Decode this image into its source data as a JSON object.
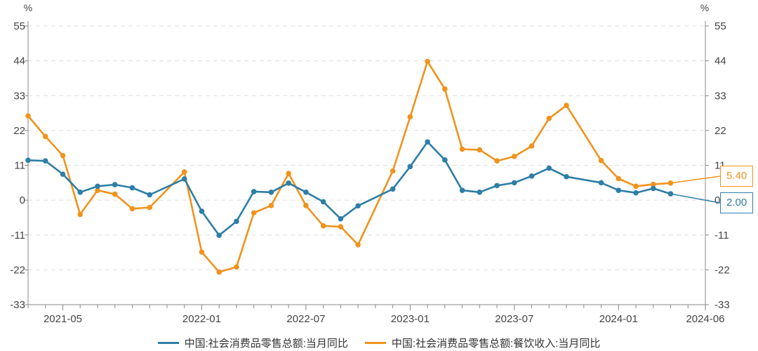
{
  "chart_data": {
    "type": "line",
    "left_axis_unit": "%",
    "right_axis_unit": "%",
    "y_ticks": [
      55,
      44,
      33,
      22,
      11,
      0,
      -11,
      -22,
      -33
    ],
    "ylim": [
      -33,
      55
    ],
    "x_tick_labels": [
      "2021-05",
      "2022-01",
      "2022-07",
      "2023-01",
      "2023-07",
      "2024-01",
      "2024-06"
    ],
    "x": [
      "2021-03",
      "2021-04",
      "2021-05",
      "2021-06",
      "2021-07",
      "2021-08",
      "2021-09",
      "2021-10",
      "2021-11",
      "2021-12",
      "2022-01",
      "2022-02",
      "2022-03",
      "2022-04",
      "2022-05",
      "2022-06",
      "2022-07",
      "2022-08",
      "2022-09",
      "2022-10",
      "2022-11",
      "2022-12",
      "2023-01",
      "2023-02",
      "2023-03",
      "2023-04",
      "2023-05",
      "2023-06",
      "2023-07",
      "2023-08",
      "2023-09",
      "2023-10",
      "2023-11",
      "2023-12",
      "2024-01",
      "2024-02",
      "2024-03",
      "2024-04",
      "2024-05",
      "2024-06"
    ],
    "series": [
      {
        "name": "中国:社会消费品零售总额:当月同比",
        "color": "#2e7ea6",
        "values": [
          12.6,
          12.4,
          8.2,
          2.5,
          4.4,
          4.9,
          3.9,
          1.7,
          null,
          6.7,
          -3.5,
          -11.1,
          -6.7,
          2.7,
          2.5,
          5.4,
          2.5,
          -0.5,
          -5.9,
          -1.8,
          null,
          3.5,
          10.6,
          18.4,
          12.7,
          3.1,
          2.5,
          4.6,
          5.5,
          7.6,
          10.1,
          7.4,
          null,
          5.5,
          3.1,
          2.3,
          3.7,
          2.0,
          null,
          null
        ],
        "last_label": "2.00"
      },
      {
        "name": "中国:社会消费品零售总额:餐饮收入:当月同比",
        "color": "#f0931e",
        "values": [
          26.6,
          20.1,
          14.1,
          -4.5,
          3.1,
          1.9,
          -2.7,
          -2.3,
          null,
          8.9,
          -16.4,
          -22.7,
          -21.1,
          -4.0,
          -1.7,
          8.4,
          -1.7,
          -8.1,
          -8.4,
          -14.1,
          null,
          9.2,
          26.3,
          43.8,
          35.1,
          16.1,
          15.9,
          12.4,
          13.8,
          17.1,
          25.8,
          29.9,
          null,
          12.5,
          6.8,
          4.4,
          5.0,
          5.4,
          null,
          null
        ],
        "last_label": "5.40"
      }
    ]
  },
  "legend": {
    "item1": "中国:社会消费品零售总额:当月同比",
    "item2": "中国:社会消费品零售总额:餐饮收入:当月同比"
  }
}
